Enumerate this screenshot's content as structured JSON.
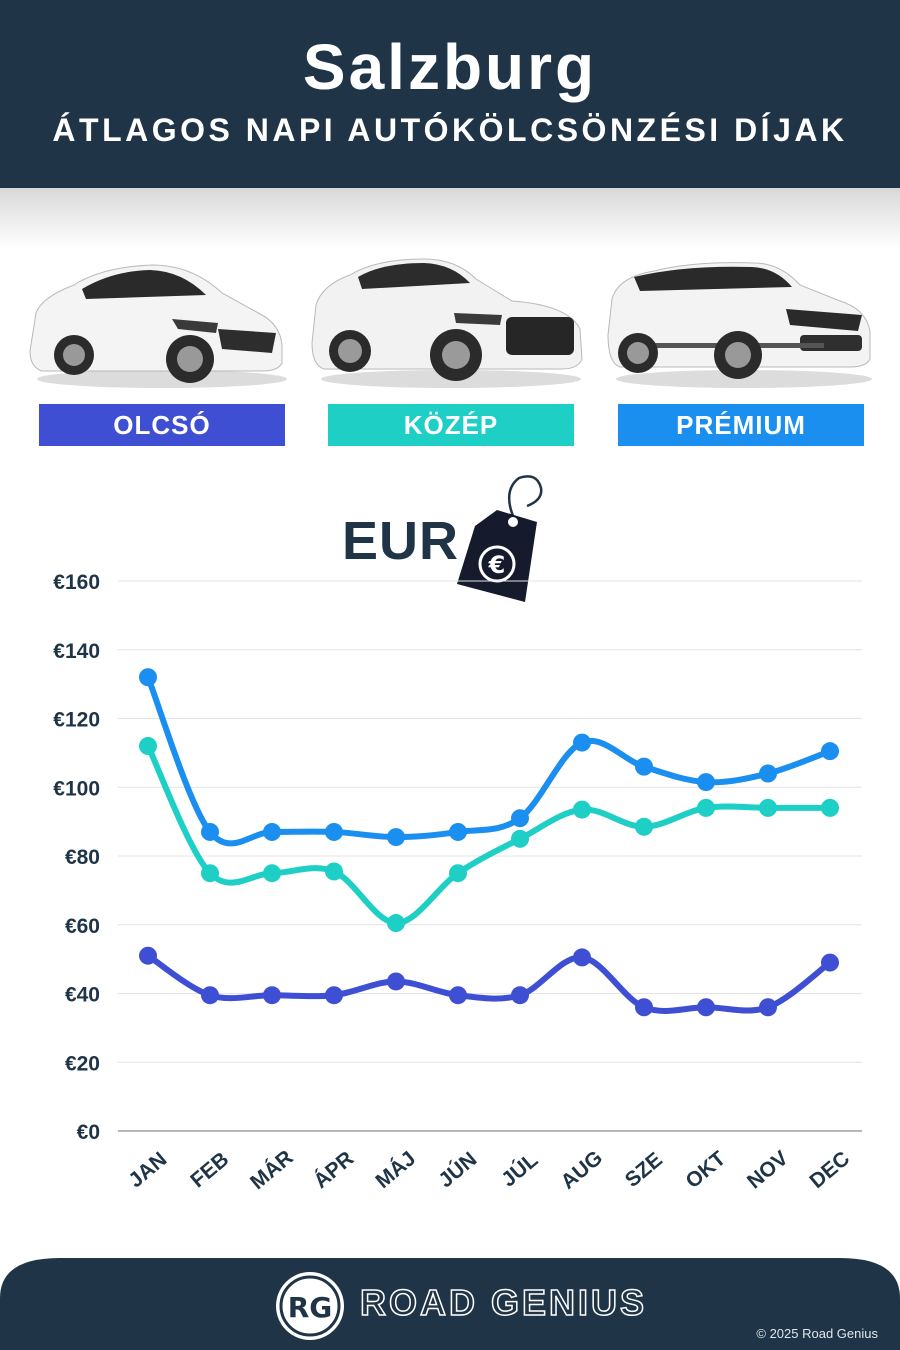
{
  "header": {
    "title": "Salzburg",
    "subtitle": "ÁTLAGOS NAPI AUTÓKÖLCSÖNZÉSI DÍJAK"
  },
  "categories": [
    {
      "label": "OLCSÓ",
      "color": "#3f4fd3"
    },
    {
      "label": "KÖZÉP",
      "color": "#1ecfc6"
    },
    {
      "label": "PRÉMIUM",
      "color": "#1a8ff0"
    }
  ],
  "currency_label": "EUR",
  "currency_icon": "euro-price-tag-icon",
  "chart_data": {
    "type": "line",
    "categories": [
      "JAN",
      "FEB",
      "MÁR",
      "ÁPR",
      "MÁJ",
      "JÚN",
      "JÚL",
      "AUG",
      "SZE",
      "OKT",
      "NOV",
      "DEC"
    ],
    "y_ticks": [
      "€0",
      "€20",
      "€40",
      "€60",
      "€80",
      "€100",
      "€120",
      "€140",
      "€160"
    ],
    "ylim": [
      0,
      160
    ],
    "grid": true,
    "series": [
      {
        "name": "OLCSÓ",
        "color": "#3f4fd3",
        "values": [
          51,
          39.5,
          39.5,
          39.5,
          43.5,
          39.5,
          39.5,
          50.5,
          36,
          36,
          36,
          49
        ]
      },
      {
        "name": "KÖZÉP",
        "color": "#1ecfc6",
        "values": [
          112,
          75,
          75,
          75.5,
          60.5,
          75,
          85,
          93.5,
          88.5,
          94,
          94,
          94
        ]
      },
      {
        "name": "PRÉMIUM",
        "color": "#1a8ff0",
        "values": [
          132,
          87,
          87,
          87,
          85.5,
          87,
          91,
          113,
          106,
          101.5,
          104,
          110.5
        ]
      }
    ]
  },
  "footer": {
    "logo_text": "RG",
    "brand": "ROAD GENIUS",
    "copyright": "© 2025 Road Genius"
  }
}
